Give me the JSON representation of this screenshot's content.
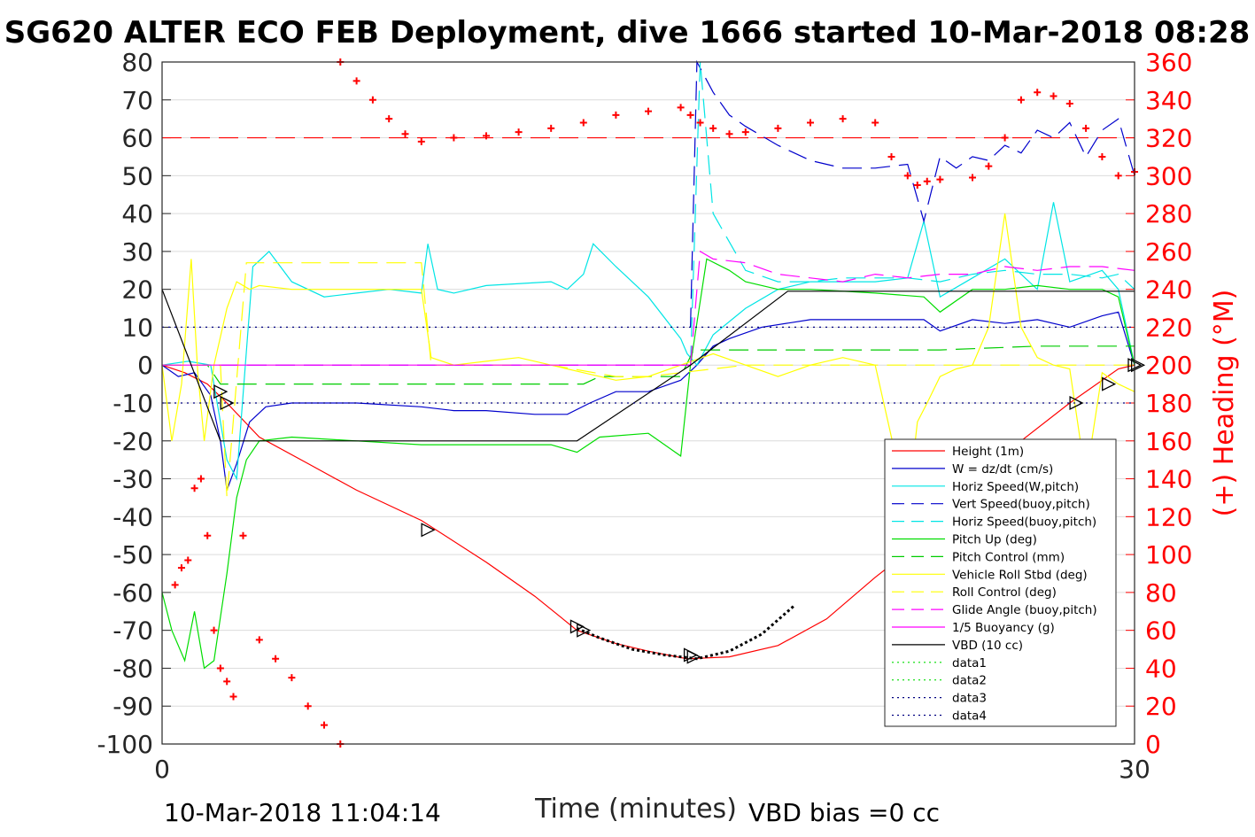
{
  "chart_data": {
    "type": "line",
    "title": "SG620 ALTER ECO FEB Deployment, dive 1666 started 10-Mar-2018 08:28",
    "xlabel": "Time (minutes)",
    "ylabel_right": "(+) Heading (°M)",
    "xlim": [
      0,
      30
    ],
    "ylim": [
      -100,
      80
    ],
    "ylim_right": [
      0,
      360
    ],
    "x_ticks": [
      "0",
      "30"
    ],
    "y_ticks": [
      "80",
      "70",
      "60",
      "50",
      "40",
      "30",
      "20",
      "10",
      "0",
      "-10",
      "-20",
      "-30",
      "-40",
      "-50",
      "-60",
      "-70",
      "-80",
      "-90",
      "-100"
    ],
    "y_right_ticks": [
      "360",
      "340",
      "320",
      "300",
      "280",
      "260",
      "240",
      "220",
      "200",
      "180",
      "160",
      "140",
      "120",
      "100",
      "80",
      "60",
      "40",
      "20",
      "0"
    ],
    "grid": true,
    "legend_position": "bottom-right",
    "footer_left": "10-Mar-2018 11:04:14",
    "footer_right": "VBD bias =0 cc",
    "series": [
      {
        "name": "Height (1m)",
        "color": "#ff0000",
        "style": "solid",
        "x": [
          0,
          0.7,
          1.4,
          2.0,
          3.0,
          4.5,
          6.0,
          8.0,
          10.0,
          11.5,
          12.8,
          14.0,
          15.0,
          16.2,
          17.5,
          19.0,
          20.5,
          22.0,
          23.5,
          25.0,
          26.5,
          28.0,
          29.5,
          30.0
        ],
        "y": [
          0,
          -2,
          -5,
          -10,
          -19,
          -26,
          -33,
          -41,
          -52,
          -61,
          -70,
          -73.5,
          -75.5,
          -77.5,
          -77,
          -74,
          -67,
          -56,
          -46,
          -33,
          -20,
          -10,
          -1,
          0
        ]
      },
      {
        "name": "W = dz/dt (cm/s)",
        "color": "#0000cc",
        "style": "solid",
        "x": [
          0,
          0.5,
          1.0,
          1.5,
          1.8,
          2.0,
          2.3,
          2.7,
          3.2,
          4.0,
          6,
          8,
          9,
          10,
          11.5,
          12.5,
          13.2,
          14.0,
          15.0,
          16.0,
          16.5,
          17.0,
          17.5,
          18.5,
          20,
          22,
          23.5,
          24,
          25,
          26,
          27,
          28,
          29,
          29.5,
          30
        ],
        "y": [
          0,
          -3,
          -2,
          -8,
          -20,
          -33,
          -26,
          -15,
          -11,
          -10,
          -10,
          -11,
          -12,
          -12,
          -13,
          -13,
          -10,
          -7,
          -7,
          -4,
          0,
          5,
          7,
          10,
          12,
          12,
          12,
          9,
          12,
          11,
          12,
          10,
          13,
          14,
          0
        ]
      },
      {
        "name": "Horiz Speed(W,pitch)",
        "color": "#00e5e5",
        "style": "solid",
        "x": [
          0,
          0.8,
          1.5,
          2.0,
          2.3,
          2.8,
          3.3,
          4,
          5,
          6,
          7,
          8,
          8.2,
          8.5,
          9,
          10,
          12,
          12.5,
          13.0,
          13.3,
          14,
          15,
          16,
          16.2,
          16.5,
          17,
          18,
          19,
          20,
          22,
          23,
          23.5,
          24,
          25,
          26,
          27,
          27.5,
          28,
          29,
          29.5,
          30
        ],
        "y": [
          0,
          1,
          0,
          -25,
          -30,
          26,
          30,
          22,
          18,
          19,
          20,
          19,
          32,
          20,
          19,
          21,
          22,
          20,
          24,
          32,
          26,
          18,
          7,
          3,
          0,
          8,
          15,
          20,
          22,
          22,
          23,
          38,
          18,
          23,
          28,
          20,
          43,
          22,
          25,
          20,
          0
        ]
      },
      {
        "name": "Vert Speed(buoy,pitch)",
        "color": "#0000cc",
        "style": "dashed",
        "x": [
          16.3,
          16.5,
          17,
          17.5,
          18,
          19,
          20,
          21,
          22,
          23,
          23.5,
          24,
          24.5,
          25,
          25.5,
          26,
          26.5,
          27,
          27.5,
          28,
          28.5,
          29,
          29.5,
          30
        ],
        "y": [
          10,
          80,
          72,
          66,
          63,
          58,
          54,
          52,
          52,
          53,
          38,
          55,
          52,
          55,
          54,
          58,
          56,
          62,
          60,
          64,
          55,
          62,
          65,
          50
        ]
      },
      {
        "name": "Horiz Speed(buoy,pitch)",
        "color": "#00e5e5",
        "style": "dashed",
        "x": [
          16.3,
          16.6,
          17,
          18,
          19,
          20,
          21,
          22,
          23,
          24,
          25,
          26,
          27,
          28,
          29,
          29.5,
          30
        ],
        "y": [
          0,
          80,
          40,
          25,
          22,
          22,
          23,
          23,
          23,
          22,
          24,
          25,
          24,
          24,
          23,
          24,
          20
        ]
      },
      {
        "name": "Pitch Up (deg)",
        "color": "#00dd00",
        "style": "solid",
        "x": [
          0,
          0.3,
          0.7,
          1.0,
          1.3,
          1.6,
          2.0,
          2.3,
          2.6,
          3.0,
          4,
          6,
          8,
          10,
          12,
          12.8,
          13.5,
          15,
          16.0,
          16.3,
          16.8,
          17.5,
          18,
          19,
          20,
          22,
          23.5,
          24,
          25,
          26,
          27,
          28,
          29,
          29.5,
          30
        ],
        "y": [
          -60,
          -70,
          -78,
          -65,
          -80,
          -78,
          -55,
          -35,
          -25,
          -20,
          -19,
          -20,
          -21,
          -21,
          -21,
          -23,
          -19,
          -18,
          -24,
          0,
          28,
          25,
          22,
          20,
          20,
          19,
          18,
          14,
          20,
          20,
          21,
          20,
          20,
          18,
          0
        ]
      },
      {
        "name": "Pitch Control (mm)",
        "color": "#00cc00",
        "style": "dashed",
        "x": [
          0,
          1.4,
          1.8,
          2.2,
          3,
          6,
          9,
          12,
          13,
          13.5,
          16,
          16.4,
          18,
          21,
          24,
          27,
          30
        ],
        "y": [
          0,
          0,
          -5,
          -5,
          -5,
          -5,
          -5,
          -5,
          -5,
          -3,
          -3,
          4,
          4,
          4,
          4,
          5,
          5
        ]
      },
      {
        "name": "Vehicle Roll Stbd (deg)",
        "color": "#ffff00",
        "style": "solid",
        "x": [
          0,
          0.3,
          0.6,
          0.9,
          1.1,
          1.3,
          1.6,
          2.0,
          2.3,
          2.7,
          3.0,
          4,
          5,
          6,
          7,
          8,
          8.3,
          9,
          10,
          11,
          12,
          13,
          14,
          15,
          16,
          17,
          18,
          19,
          20,
          21,
          22,
          23,
          23.3,
          23.6,
          24,
          24.5,
          25,
          25.5,
          26,
          26.5,
          27,
          27.5,
          28,
          28.5,
          29,
          29.5,
          30
        ],
        "y": [
          0,
          -20,
          -5,
          28,
          -2,
          -20,
          0,
          15,
          22,
          20,
          21,
          20,
          20,
          20,
          20,
          20,
          2,
          0,
          1,
          2,
          0,
          -2,
          -4,
          -3,
          0,
          3,
          0,
          -3,
          0,
          2,
          0,
          -38,
          -15,
          -10,
          -3,
          -1,
          0,
          10,
          40,
          10,
          2,
          0,
          -1,
          -30,
          -2,
          -5,
          -7
        ]
      },
      {
        "name": "Roll Control (deg)",
        "color": "#ffff00",
        "style": "dashed",
        "x": [
          0,
          1.8,
          2.0,
          2.6,
          3,
          5,
          7,
          8,
          8.3,
          8.6,
          10,
          12,
          14,
          15,
          16,
          18,
          20,
          22,
          24,
          26,
          28,
          30
        ],
        "y": [
          0,
          0,
          -35,
          27,
          27,
          27,
          27,
          27,
          0,
          0,
          0,
          0,
          -3,
          -3,
          -2,
          0,
          0,
          0,
          0,
          0,
          0,
          0
        ]
      },
      {
        "name": "Glide Angle (buoy,pitch)",
        "color": "#ff00ff",
        "style": "dashed",
        "x": [
          16.3,
          16.6,
          17,
          18,
          19,
          20,
          21,
          22,
          23,
          24,
          25,
          26,
          27,
          28,
          29,
          30
        ],
        "y": [
          0,
          30,
          28,
          27,
          24,
          23,
          22,
          24,
          23,
          24,
          24,
          26,
          25,
          26,
          26,
          25
        ]
      },
      {
        "name": "1/5 Buoyancy (g)",
        "color": "#ff00ff",
        "style": "solid",
        "x": [
          0,
          5,
          10,
          15,
          16.3
        ],
        "y": [
          0,
          0,
          0,
          0,
          0
        ]
      },
      {
        "name": "VBD (10 cc)",
        "color": "#000000",
        "style": "solid",
        "x": [
          0,
          1.8,
          12.8,
          16.3,
          19.3,
          30
        ],
        "y": [
          20,
          -20,
          -20,
          0,
          19.5,
          19.5
        ]
      },
      {
        "name": "data1",
        "color": "#00dd00",
        "style": "dotted",
        "x": [],
        "y": []
      },
      {
        "name": "data2",
        "color": "#00dd00",
        "style": "dotted",
        "x": [],
        "y": []
      },
      {
        "name": "data3",
        "color": "#000080",
        "style": "dotted",
        "x": [
          0,
          30
        ],
        "y": [
          10,
          10
        ]
      },
      {
        "name": "data4",
        "color": "#000080",
        "style": "dotted",
        "x": [
          0,
          30
        ],
        "y": [
          -10,
          -10
        ]
      }
    ],
    "reference_lines": [
      {
        "color": "#ff0000",
        "style": "dashed",
        "y": 60
      },
      {
        "color": "#8000ff",
        "style": "dashed",
        "y": 0,
        "x_range": [
          0,
          16.3
        ]
      }
    ],
    "heading_points": {
      "color": "#ff0000",
      "marker": "+",
      "x": [
        0.4,
        0.6,
        0.8,
        1.0,
        1.2,
        1.4,
        1.6,
        1.8,
        2.0,
        2.2,
        2.5,
        3.0,
        3.5,
        4.0,
        4.5,
        5.0,
        5.5,
        5.5,
        6,
        6.5,
        7,
        7.5,
        8,
        9,
        10,
        11,
        12,
        13,
        14,
        15,
        16,
        16.3,
        16.6,
        17,
        17.5,
        18,
        19,
        20,
        21,
        22,
        22.5,
        23,
        23.3,
        23.6,
        24,
        25,
        25.5,
        26,
        26.5,
        27,
        27.5,
        28,
        28.5,
        29,
        29.5,
        30
      ],
      "y": [
        84,
        93,
        97,
        135,
        140,
        110,
        60,
        40,
        33,
        25,
        110,
        55,
        45,
        35,
        20,
        10,
        0,
        360,
        350,
        340,
        330,
        322,
        318,
        320,
        321,
        323,
        325,
        328,
        332,
        334,
        336,
        332,
        328,
        325,
        322,
        323,
        325,
        328,
        330,
        328,
        310,
        300,
        295,
        297,
        298,
        299,
        305,
        320,
        340,
        344,
        342,
        338,
        325,
        310,
        300,
        302
      ]
    },
    "triangle_markers": {
      "color": "#000000",
      "x": [
        1.8,
        2.0,
        8.2,
        12.8,
        13.0,
        16.3,
        16.4,
        22.8,
        23.6,
        25.5,
        26.4,
        28.2,
        29.2,
        30.0,
        30.1
      ],
      "y": [
        -7,
        -10,
        -43.5,
        -69,
        -70,
        -76.5,
        -77,
        -42.5,
        -39,
        -27,
        -22,
        -10,
        -5,
        0,
        0
      ]
    },
    "dotted_segment": {
      "color": "#000000",
      "x": [
        12.8,
        13.5,
        14.5,
        15.5,
        16.5,
        17.5,
        18.5,
        19.5
      ],
      "y": [
        -69.5,
        -72,
        -75,
        -76.5,
        -77.5,
        -75.5,
        -71,
        -63.5
      ]
    }
  }
}
